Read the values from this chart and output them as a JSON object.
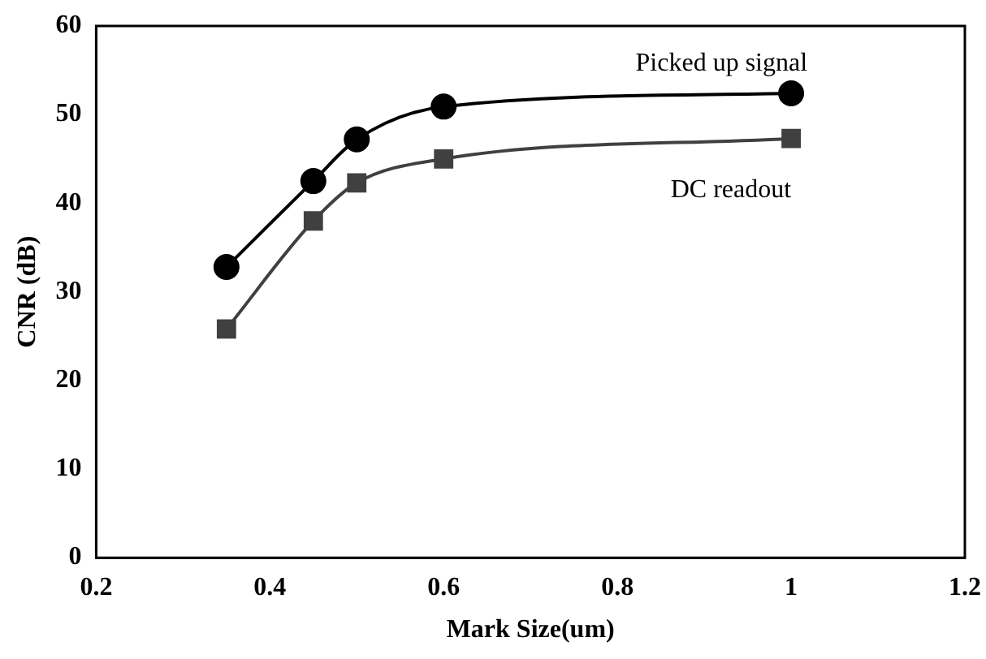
{
  "chart_data": {
    "type": "line",
    "xlabel": "Mark Size(um)",
    "ylabel": "CNR (dB)",
    "x": [
      0.35,
      0.45,
      0.5,
      0.6,
      1.0
    ],
    "series": [
      {
        "name": "Picked up signal",
        "color": "#000000",
        "marker": "circle",
        "values": [
          32.8,
          42.5,
          47.2,
          50.9,
          52.4
        ]
      },
      {
        "name": "DC readout",
        "color": "#404040",
        "marker": "square",
        "values": [
          25.8,
          38.0,
          42.3,
          45.0,
          47.3
        ]
      }
    ],
    "xlim": [
      0.2,
      1.2
    ],
    "xticks": [
      0.2,
      0.4,
      0.6,
      0.8,
      1,
      1.2
    ],
    "ylim": [
      0,
      60
    ],
    "yticks": [
      0,
      10,
      20,
      30,
      40,
      50,
      60
    ],
    "grid": false,
    "legend": false
  }
}
